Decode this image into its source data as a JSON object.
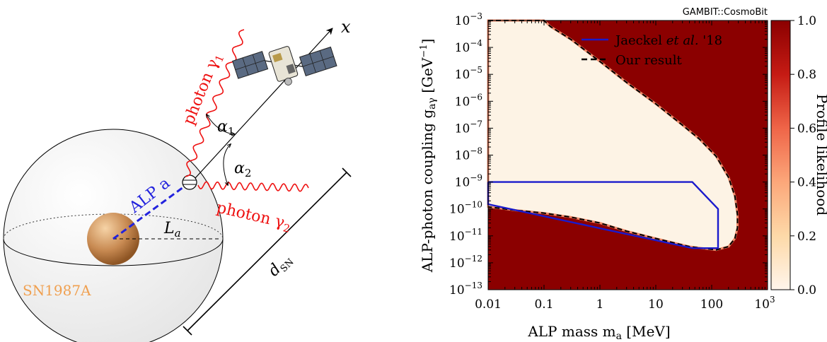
{
  "diagram": {
    "labels": {
      "x_axis": "x",
      "photon_1": "photon γ",
      "photon_1_sub": "1",
      "photon_2": "photon γ",
      "photon_2_sub": "2",
      "alpha_1": "α",
      "alpha_1_sub": "1",
      "alpha_2": "α",
      "alpha_2_sub": "2",
      "alp": "ALP a",
      "length": "L",
      "length_sub": "a",
      "distance": "d",
      "distance_sub": "SN",
      "source": "SN1987A"
    },
    "colors": {
      "photon": "#ee1111",
      "alp": "#2222dd",
      "source_label": "#f0a050",
      "sphere": "#f4f4f4"
    }
  },
  "chart_data": {
    "type": "heatmap",
    "tag": "GAMBIT::CosmoBit",
    "xlabel": "ALP mass m",
    "xlabel_sub": "a",
    "xlabel_unit": " [MeV]",
    "ylabel": "ALP-photon coupling g",
    "ylabel_sub": "aγ",
    "ylabel_unit": " [GeV",
    "ylabel_unit_sup": "−1",
    "ylabel_unit_end": "]",
    "x_scale": "log",
    "y_scale": "log",
    "xlim": [
      0.01,
      1000
    ],
    "ylim": [
      1e-13,
      0.001
    ],
    "x_ticks": [
      {
        "value": 0.01,
        "label": "0.01"
      },
      {
        "value": 0.1,
        "label": "0.1"
      },
      {
        "value": 1,
        "label": "1"
      },
      {
        "value": 10,
        "label": "10"
      },
      {
        "value": 100,
        "label": "100"
      }
    ],
    "x_tick_last": {
      "value": 1000,
      "base": "10",
      "exp": "3"
    },
    "y_ticks": [
      {
        "value": 1e-13,
        "exp": "−13"
      },
      {
        "value": 1e-12,
        "exp": "−12"
      },
      {
        "value": 1e-11,
        "exp": "−11"
      },
      {
        "value": 1e-10,
        "exp": "−10"
      },
      {
        "value": 1e-09,
        "exp": "−9"
      },
      {
        "value": 1e-08,
        "exp": "−8"
      },
      {
        "value": 1e-07,
        "exp": "−7"
      },
      {
        "value": 1e-06,
        "exp": "−6"
      },
      {
        "value": 1e-05,
        "exp": "−5"
      },
      {
        "value": 0.0001,
        "exp": "−4"
      },
      {
        "value": 0.001,
        "exp": "−3"
      }
    ],
    "tick_base": "10",
    "background_color": "#8b0000",
    "allowed_color": "#fdf3e5",
    "our_result_contour": [
      [
        0.01,
        0.001
      ],
      [
        0.1,
        0.001
      ],
      [
        0.13,
        0.0006
      ],
      [
        0.3,
        0.0002
      ],
      [
        1,
        3e-05
      ],
      [
        3,
        5e-06
      ],
      [
        10,
        8e-07
      ],
      [
        30,
        1.3e-07
      ],
      [
        60,
        4e-08
      ],
      [
        120,
        9e-09
      ],
      [
        200,
        1.5e-09
      ],
      [
        260,
        3e-10
      ],
      [
        290,
        6e-11
      ],
      [
        290,
        2e-11
      ],
      [
        260,
        8e-12
      ],
      [
        200,
        4e-12
      ],
      [
        120,
        3e-12
      ],
      [
        40,
        4e-12
      ],
      [
        10,
        8e-12
      ],
      [
        3,
        1.5e-11
      ],
      [
        1,
        3e-11
      ],
      [
        0.3,
        5e-11
      ],
      [
        0.1,
        7e-11
      ],
      [
        0.03,
        9e-11
      ],
      [
        0.01,
        1.2e-10
      ]
    ],
    "jaeckel_contour": [
      [
        0.01,
        1e-09
      ],
      [
        45,
        1e-09
      ],
      [
        130,
        1e-10
      ],
      [
        130,
        3.5e-12
      ],
      [
        45,
        3.5e-12
      ],
      [
        0.01,
        1.5e-10
      ],
      [
        0.01,
        1e-09
      ]
    ],
    "legend": [
      {
        "name": "Jaeckel et al. '18",
        "name_main": "Jaeckel ",
        "name_em": "et al.",
        "name_tail": " '18",
        "color": "#1a1acc",
        "style": "solid"
      },
      {
        "name": "Our result",
        "color": "#000000",
        "style": "dashed"
      }
    ],
    "legend_position": "top-right",
    "colorbar": {
      "label": "Profile likelihood",
      "range": [
        0.0,
        1.0
      ],
      "ticks": [
        {
          "value": 0.0,
          "label": "0.0"
        },
        {
          "value": 0.2,
          "label": "0.2"
        },
        {
          "value": 0.4,
          "label": "0.4"
        },
        {
          "value": 0.6,
          "label": "0.6"
        },
        {
          "value": 0.8,
          "label": "0.8"
        },
        {
          "value": 1.0,
          "label": "1.0"
        }
      ],
      "color_low": "#fff5eb",
      "color_high": "#8b0000"
    }
  }
}
